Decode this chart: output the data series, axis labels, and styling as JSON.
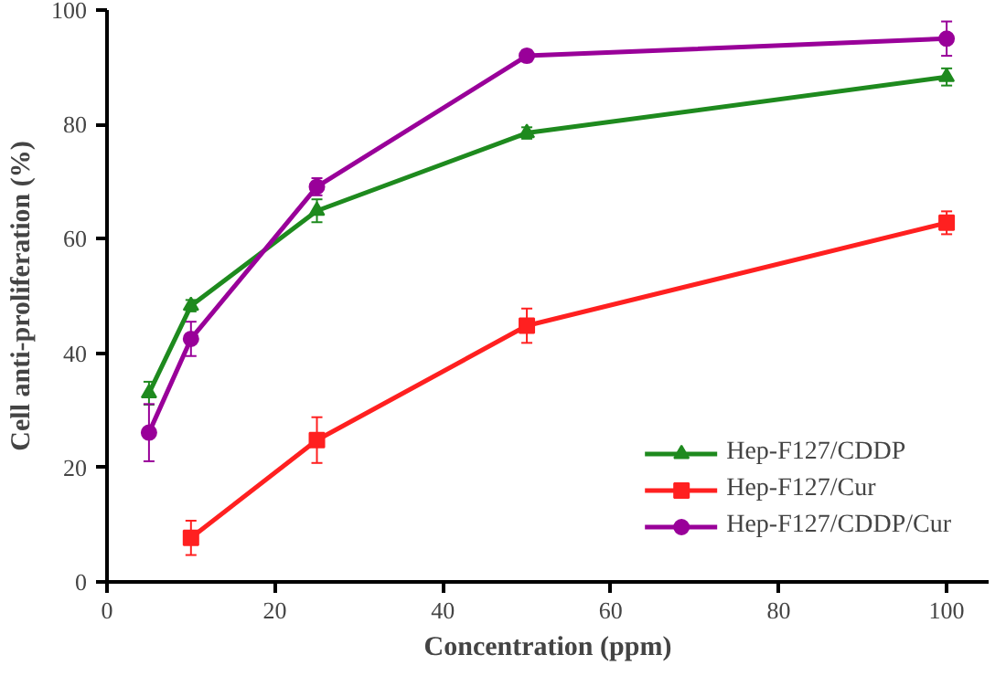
{
  "chart_data": {
    "type": "line",
    "xlabel": "Concentration (ppm)",
    "ylabel": "Cell anti-proliferation (%)",
    "xlim": [
      0,
      105
    ],
    "ylim": [
      0,
      100
    ],
    "xticks": [
      0,
      20,
      40,
      60,
      80,
      100
    ],
    "yticks": [
      0,
      20,
      40,
      60,
      80,
      100
    ],
    "grid": false,
    "legend": "bottom right",
    "line_style": "solid",
    "series": [
      {
        "name": "Hep-F127/CDDP",
        "color": "#1e8a1e",
        "marker": "triangle",
        "x": [
          5,
          10,
          25,
          50,
          100
        ],
        "values": [
          33,
          48.3,
          64.9,
          78.5,
          88.3
        ],
        "errors": [
          2,
          1,
          2,
          1,
          1.5
        ]
      },
      {
        "name": "Hep-F127/Cur",
        "color": "#ff2020",
        "marker": "square",
        "x": [
          10,
          25,
          50,
          100
        ],
        "values": [
          7.7,
          24.8,
          44.8,
          62.8
        ],
        "errors": [
          3,
          4,
          3,
          2
        ]
      },
      {
        "name": "Hep-F127/CDDP/Cur",
        "color": "#990099",
        "marker": "circle",
        "x": [
          5,
          10,
          25,
          50,
          100
        ],
        "values": [
          26.1,
          42.5,
          69.1,
          92,
          95
        ],
        "errors": [
          5,
          3,
          1.5,
          1,
          3
        ]
      }
    ]
  }
}
